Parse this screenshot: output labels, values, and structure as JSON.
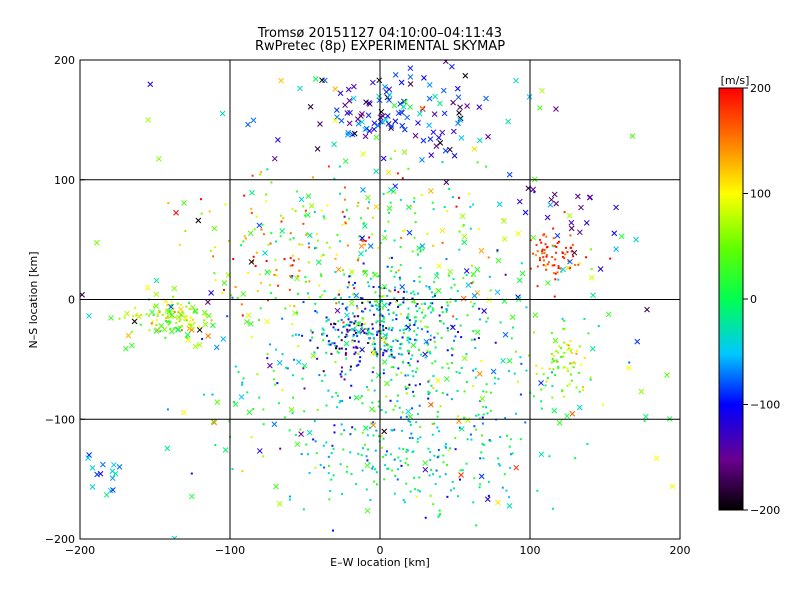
{
  "chart_data": {
    "type": "scatter",
    "title": "Tromsø 20151127 04:10:00–04:11:43",
    "subtitle": "RwPretec (8p) EXPERIMENTAL SKYMAP",
    "xlabel": "E–W location [km]",
    "ylabel": "N–S location [km]",
    "xlim": [
      -200,
      200
    ],
    "ylim": [
      -200,
      200
    ],
    "x_ticks": [
      "-200",
      "-100",
      "0",
      "100",
      "200"
    ],
    "y_ticks": [
      "-200",
      "-100",
      "0",
      "100",
      "200"
    ],
    "grid": true,
    "colorbar": {
      "label": "[m/s]",
      "range": [
        -200,
        200
      ],
      "ticks": [
        "200",
        "100",
        "0",
        "-100",
        "-200"
      ]
    },
    "clusters": [
      {
        "cx": 15,
        "cy": 155,
        "sx": 28,
        "sy": 18,
        "n": 120,
        "vmean": -110,
        "vsd": 60,
        "marker": "x"
      },
      {
        "cx": 5,
        "cy": -20,
        "sx": 22,
        "sy": 22,
        "n": 260,
        "vmean": -40,
        "vsd": 55,
        "marker": "dot"
      },
      {
        "cx": -20,
        "cy": -35,
        "sx": 12,
        "sy": 14,
        "n": 80,
        "vmean": -130,
        "vsd": 40,
        "marker": "dot"
      },
      {
        "cx": 10,
        "cy": -50,
        "sx": 60,
        "sy": 45,
        "n": 380,
        "vmean": -10,
        "vsd": 50,
        "marker": "dot"
      },
      {
        "cx": 20,
        "cy": -130,
        "sx": 40,
        "sy": 25,
        "n": 200,
        "vmean": -30,
        "vsd": 40,
        "marker": "dot"
      },
      {
        "cx": -60,
        "cy": 40,
        "sx": 30,
        "sy": 25,
        "n": 110,
        "vmean": 120,
        "vsd": 60,
        "marker": "dot"
      },
      {
        "cx": -140,
        "cy": -15,
        "sx": 15,
        "sy": 8,
        "n": 90,
        "vmean": 70,
        "vsd": 45,
        "marker": "dot"
      },
      {
        "cx": 115,
        "cy": 38,
        "sx": 8,
        "sy": 12,
        "n": 70,
        "vmean": 175,
        "vsd": 25,
        "marker": "dot"
      },
      {
        "cx": 122,
        "cy": -55,
        "sx": 8,
        "sy": 15,
        "n": 70,
        "vmean": 70,
        "vsd": 35,
        "marker": "dot"
      },
      {
        "cx": 0,
        "cy": 60,
        "sx": 50,
        "sy": 30,
        "n": 120,
        "vmean": 60,
        "vsd": 90,
        "marker": "dot"
      },
      {
        "cx": 0,
        "cy": 0,
        "sx": 110,
        "sy": 100,
        "n": 260,
        "vmean": 0,
        "vsd": 90,
        "marker": "x"
      },
      {
        "cx": 125,
        "cy": 70,
        "sx": 25,
        "sy": 20,
        "n": 25,
        "vmean": -120,
        "vsd": 40,
        "marker": "x"
      },
      {
        "cx": -130,
        "cy": -20,
        "sx": 20,
        "sy": 10,
        "n": 40,
        "vmean": 60,
        "vsd": 40,
        "marker": "x"
      },
      {
        "cx": -185,
        "cy": -145,
        "sx": 10,
        "sy": 10,
        "n": 15,
        "vmean": -60,
        "vsd": 20,
        "marker": "x"
      }
    ]
  }
}
